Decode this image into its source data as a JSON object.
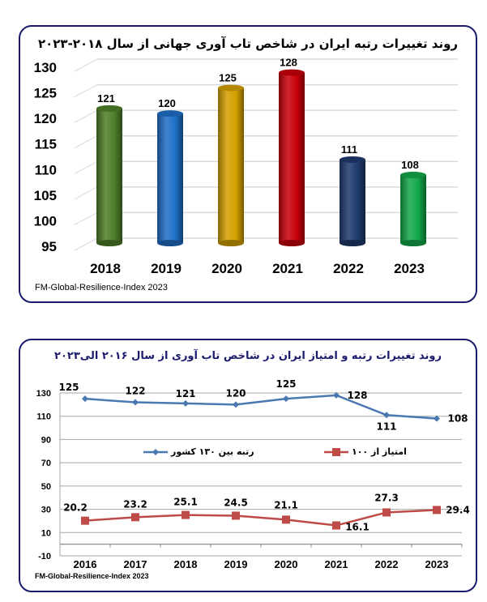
{
  "chart_data": [
    {
      "type": "bar",
      "style": "3d-cylinder",
      "title": "روند تغییرات رتبه ایران در شاخص تاب آوری جهانی از سال ۲۰۱۸-۲۰۲۳",
      "categories": [
        "2018",
        "2019",
        "2020",
        "2021",
        "2022",
        "2023"
      ],
      "values": [
        121,
        120,
        125,
        128,
        111,
        108
      ],
      "data_labels": [
        "121",
        "120",
        "125",
        "128",
        "111",
        "108"
      ],
      "bar_colors": [
        "#4f7f2a",
        "#1f6fc8",
        "#d4a000",
        "#c8000a",
        "#1f3a6e",
        "#13a84a"
      ],
      "y_ticks": [
        "95",
        "100",
        "105",
        "110",
        "115",
        "120",
        "125",
        "130"
      ],
      "ylim": [
        95,
        130
      ],
      "xlabel": "",
      "ylabel": "",
      "grid": true,
      "source": "FM-Global-Resilience-Index 2023"
    },
    {
      "type": "line",
      "title": "روند تغییرات رتبه و امتیاز ایران در شاخص تاب آوری از سال ۲۰۱۶ الی۲۰۲۳",
      "categories": [
        "2016",
        "2017",
        "2018",
        "2019",
        "2020",
        "2021",
        "2022",
        "2023"
      ],
      "series": [
        {
          "name": "رتبه بین ۱۳۰ کشور",
          "color": "#4a78b0",
          "marker": "diamond",
          "values": [
            125,
            122,
            121,
            120,
            125,
            128,
            111,
            108
          ],
          "labels": [
            "125",
            "122",
            "121",
            "120",
            "125",
            "128",
            "111",
            "108"
          ]
        },
        {
          "name": "امتیاز از ۱۰۰",
          "color": "#be4b48",
          "marker": "square",
          "values": [
            20.2,
            23.2,
            25.1,
            24.5,
            21.1,
            16.1,
            27.3,
            29.4
          ],
          "labels": [
            "20.2",
            "23.2",
            "25.1",
            "24.5",
            "21.1",
            "16.1",
            "27.3",
            "29.4"
          ]
        }
      ],
      "y_ticks": [
        "-10",
        "10",
        "30",
        "50",
        "70",
        "90",
        "110",
        "130"
      ],
      "ylim": [
        -10,
        130
      ],
      "legend_position": "inside-middle",
      "grid": true,
      "source": "FM-Global-Resilience-Index 2023"
    }
  ]
}
